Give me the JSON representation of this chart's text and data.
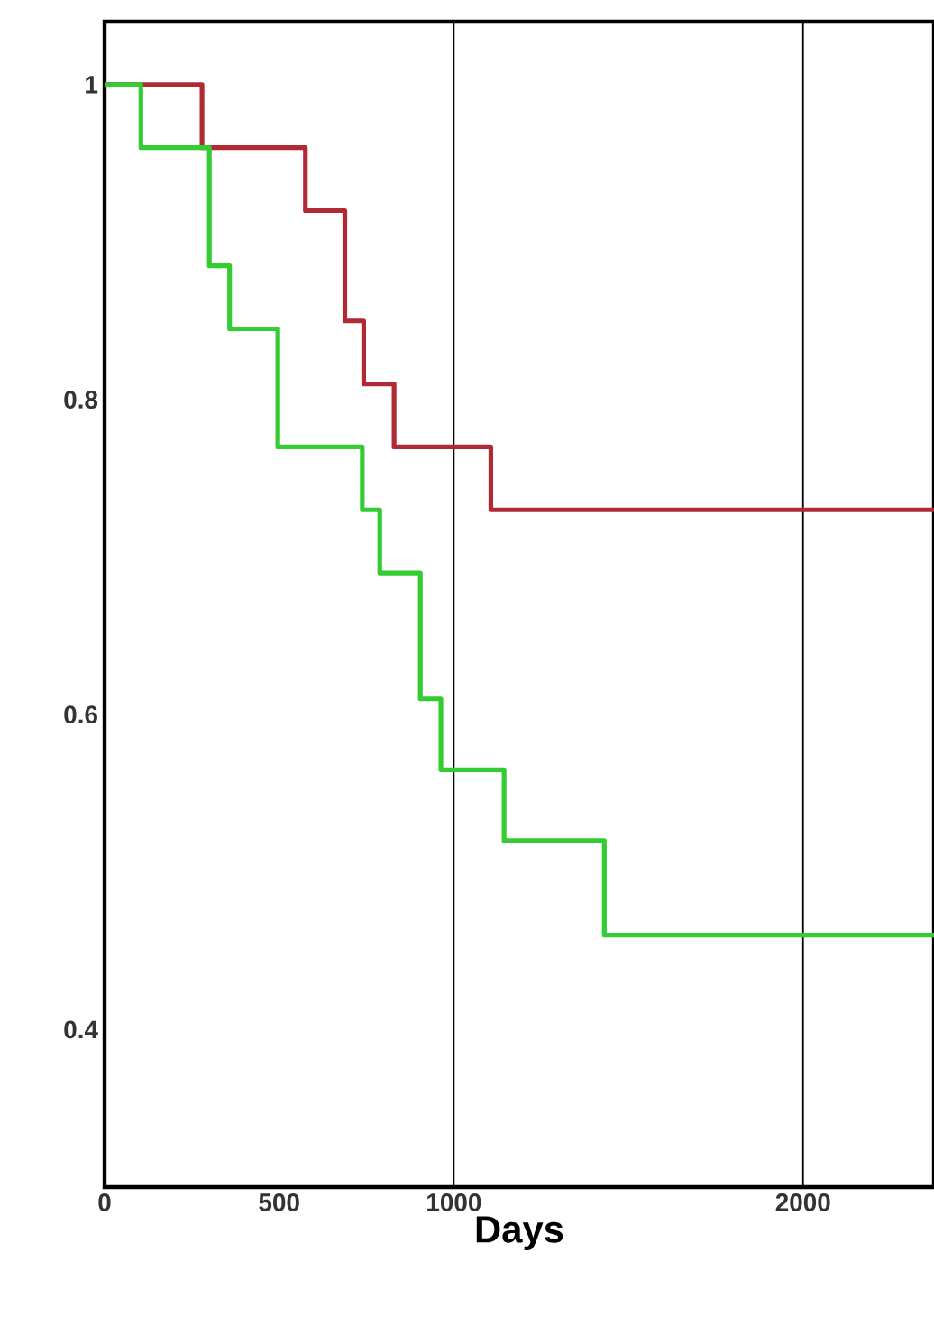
{
  "chart_data": {
    "type": "step",
    "xlabel": "Days",
    "series": [
      {
        "color": "#b02a35",
        "x": [
          0,
          279,
          575,
          688,
          742,
          829,
          1106,
          2375
        ],
        "values": [
          1,
          0.96,
          0.92,
          0.85,
          0.81,
          0.77,
          0.73,
          0.73
        ]
      },
      {
        "color": "#33cc33",
        "x": [
          0,
          104,
          300,
          358,
          496,
          738,
          788,
          904,
          963,
          1144,
          1431,
          2375
        ],
        "values": [
          1,
          0.96,
          0.885,
          0.845,
          0.77,
          0.73,
          0.69,
          0.61,
          0.565,
          0.52,
          0.46,
          0.46
        ]
      }
    ],
    "xlim": [
      0,
      2375
    ],
    "ylim": [
      0.3,
      1.04
    ],
    "xticks": [
      0,
      500,
      1000,
      2000
    ],
    "yticks": [
      0.4,
      0.6,
      0.8,
      1
    ],
    "ref_lines": [
      {
        "axis": "x",
        "value": 1000,
        "color": "#000000"
      },
      {
        "axis": "x",
        "value": 2000,
        "color": "#000000"
      }
    ],
    "line_style": "solid",
    "marker": "none",
    "grid": false
  }
}
